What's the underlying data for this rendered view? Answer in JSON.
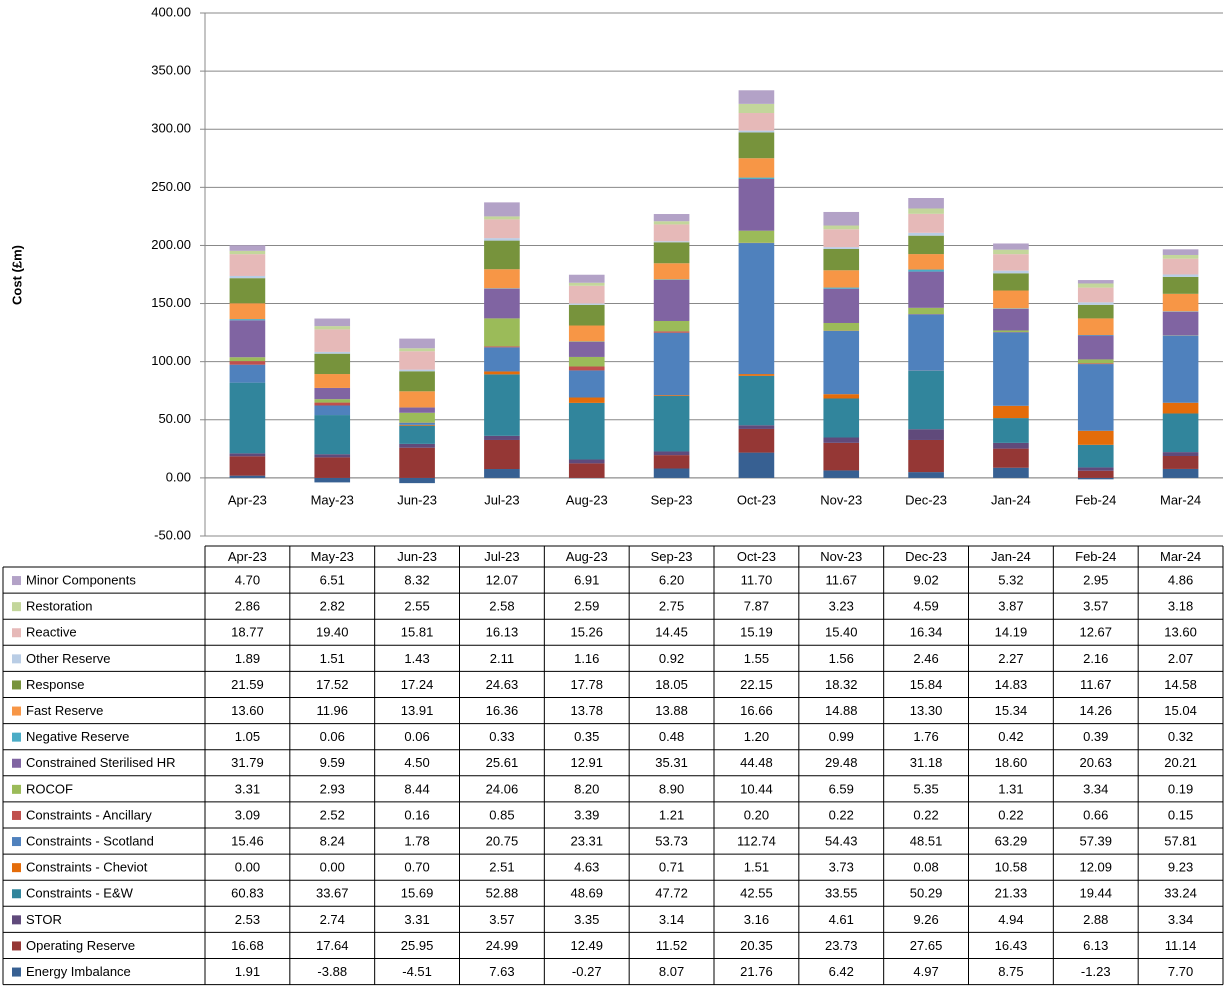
{
  "chart_data": {
    "type": "stacked_bar",
    "y_label": "Cost (£m)",
    "categories": [
      "Apr-23",
      "May-23",
      "Jun-23",
      "Jul-23",
      "Aug-23",
      "Sep-23",
      "Oct-23",
      "Nov-23",
      "Dec-23",
      "Jan-24",
      "Feb-24",
      "Mar-24"
    ],
    "ylim": [
      -50,
      400
    ],
    "yticks": [
      {
        "value": -50,
        "label": "-50.00"
      },
      {
        "value": 0,
        "label": "0.00"
      },
      {
        "value": 50,
        "label": "50.00"
      },
      {
        "value": 100,
        "label": "100.00"
      },
      {
        "value": 150,
        "label": "150.00"
      },
      {
        "value": 200,
        "label": "200.00"
      },
      {
        "value": 250,
        "label": "250.00"
      },
      {
        "value": 300,
        "label": "300.00"
      },
      {
        "value": 350,
        "label": "350.00"
      },
      {
        "value": 400,
        "label": "400.00"
      }
    ],
    "grid": true,
    "series": [
      {
        "name": "Minor Components",
        "color": "#b3a2c7",
        "values": [
          4.7,
          6.51,
          8.32,
          12.07,
          6.91,
          6.2,
          11.7,
          11.67,
          9.02,
          5.32,
          2.95,
          4.86
        ],
        "value_labels": [
          "4.70",
          "6.51",
          "8.32",
          "12.07",
          "6.91",
          "6.20",
          "11.70",
          "11.67",
          "9.02",
          "5.32",
          "2.95",
          "4.86"
        ]
      },
      {
        "name": "Restoration",
        "color": "#c3d69b",
        "values": [
          2.86,
          2.82,
          2.55,
          2.58,
          2.59,
          2.75,
          7.87,
          3.23,
          4.59,
          3.87,
          3.57,
          3.18
        ],
        "value_labels": [
          "2.86",
          "2.82",
          "2.55",
          "2.58",
          "2.59",
          "2.75",
          "7.87",
          "3.23",
          "4.59",
          "3.87",
          "3.57",
          "3.18"
        ]
      },
      {
        "name": "Reactive",
        "color": "#e6b9b8",
        "values": [
          18.77,
          19.4,
          15.81,
          16.13,
          15.26,
          14.45,
          15.19,
          15.4,
          16.34,
          14.19,
          12.67,
          13.6
        ],
        "value_labels": [
          "18.77",
          "19.40",
          "15.81",
          "16.13",
          "15.26",
          "14.45",
          "15.19",
          "15.40",
          "16.34",
          "14.19",
          "12.67",
          "13.60"
        ]
      },
      {
        "name": "Other Reserve",
        "color": "#b9cde5",
        "values": [
          1.89,
          1.51,
          1.43,
          2.11,
          1.16,
          0.92,
          1.55,
          1.56,
          2.46,
          2.27,
          2.16,
          2.07
        ],
        "value_labels": [
          "1.89",
          "1.51",
          "1.43",
          "2.11",
          "1.16",
          "0.92",
          "1.55",
          "1.56",
          "2.46",
          "2.27",
          "2.16",
          "2.07"
        ]
      },
      {
        "name": "Response",
        "color": "#77933c",
        "values": [
          21.59,
          17.52,
          17.24,
          24.63,
          17.78,
          18.05,
          22.15,
          18.32,
          15.84,
          14.83,
          11.67,
          14.58
        ],
        "value_labels": [
          "21.59",
          "17.52",
          "17.24",
          "24.63",
          "17.78",
          "18.05",
          "22.15",
          "18.32",
          "15.84",
          "14.83",
          "11.67",
          "14.58"
        ]
      },
      {
        "name": "Fast Reserve",
        "color": "#f79646",
        "values": [
          13.6,
          11.96,
          13.91,
          16.36,
          13.78,
          13.88,
          16.66,
          14.88,
          13.3,
          15.34,
          14.26,
          15.04
        ],
        "value_labels": [
          "13.60",
          "11.96",
          "13.91",
          "16.36",
          "13.78",
          "13.88",
          "16.66",
          "14.88",
          "13.30",
          "15.34",
          "14.26",
          "15.04"
        ]
      },
      {
        "name": "Negative Reserve",
        "color": "#4bacc6",
        "values": [
          1.05,
          0.06,
          0.06,
          0.33,
          0.35,
          0.48,
          1.2,
          0.99,
          1.76,
          0.42,
          0.39,
          0.32
        ],
        "value_labels": [
          "1.05",
          "0.06",
          "0.06",
          "0.33",
          "0.35",
          "0.48",
          "1.20",
          "0.99",
          "1.76",
          "0.42",
          "0.39",
          "0.32"
        ]
      },
      {
        "name": "Constrained Sterilised HR",
        "color": "#8064a2",
        "values": [
          31.79,
          9.59,
          4.5,
          25.61,
          12.91,
          35.31,
          44.48,
          29.48,
          31.18,
          18.6,
          20.63,
          20.21
        ],
        "value_labels": [
          "31.79",
          "9.59",
          "4.50",
          "25.61",
          "12.91",
          "35.31",
          "44.48",
          "29.48",
          "31.18",
          "18.60",
          "20.63",
          "20.21"
        ]
      },
      {
        "name": "ROCOF",
        "color": "#9bbb59",
        "values": [
          3.31,
          2.93,
          8.44,
          24.06,
          8.2,
          8.9,
          10.44,
          6.59,
          5.35,
          1.31,
          3.34,
          0.19
        ],
        "value_labels": [
          "3.31",
          "2.93",
          "8.44",
          "24.06",
          "8.20",
          "8.90",
          "10.44",
          "6.59",
          "5.35",
          "1.31",
          "3.34",
          "0.19"
        ]
      },
      {
        "name": "Constraints - Ancillary",
        "color": "#c0504d",
        "values": [
          3.09,
          2.52,
          0.16,
          0.85,
          3.39,
          1.21,
          0.2,
          0.22,
          0.22,
          0.22,
          0.66,
          0.15
        ],
        "value_labels": [
          "3.09",
          "2.52",
          "0.16",
          "0.85",
          "3.39",
          "1.21",
          "0.20",
          "0.22",
          "0.22",
          "0.22",
          "0.66",
          "0.15"
        ]
      },
      {
        "name": "Constraints - Scotland",
        "color": "#4f81bd",
        "values": [
          15.46,
          8.24,
          1.78,
          20.75,
          23.31,
          53.73,
          112.74,
          54.43,
          48.51,
          63.29,
          57.39,
          57.81
        ],
        "value_labels": [
          "15.46",
          "8.24",
          "1.78",
          "20.75",
          "23.31",
          "53.73",
          "112.74",
          "54.43",
          "48.51",
          "63.29",
          "57.39",
          "57.81"
        ]
      },
      {
        "name": "Constraints - Cheviot",
        "color": "#e46c0a",
        "values": [
          0,
          0,
          0.7,
          2.51,
          4.63,
          0.71,
          1.51,
          3.73,
          0.08,
          10.58,
          12.09,
          9.23
        ],
        "value_labels": [
          "0.00",
          "0.00",
          "0.70",
          "2.51",
          "4.63",
          "0.71",
          "1.51",
          "3.73",
          "0.08",
          "10.58",
          "12.09",
          "9.23"
        ]
      },
      {
        "name": "Constraints - E&W",
        "color": "#31859c",
        "values": [
          60.83,
          33.67,
          15.69,
          52.88,
          48.69,
          47.72,
          42.55,
          33.55,
          50.29,
          21.33,
          19.44,
          33.24
        ],
        "value_labels": [
          "60.83",
          "33.67",
          "15.69",
          "52.88",
          "48.69",
          "47.72",
          "42.55",
          "33.55",
          "50.29",
          "21.33",
          "19.44",
          "33.24"
        ]
      },
      {
        "name": "STOR",
        "color": "#604a7b",
        "values": [
          2.53,
          2.74,
          3.31,
          3.57,
          3.35,
          3.14,
          3.16,
          4.61,
          9.26,
          4.94,
          2.88,
          3.34
        ],
        "value_labels": [
          "2.53",
          "2.74",
          "3.31",
          "3.57",
          "3.35",
          "3.14",
          "3.16",
          "4.61",
          "9.26",
          "4.94",
          "2.88",
          "3.34"
        ]
      },
      {
        "name": "Operating Reserve",
        "color": "#953735",
        "values": [
          16.68,
          17.64,
          25.95,
          24.99,
          12.49,
          11.52,
          20.35,
          23.73,
          27.65,
          16.43,
          6.13,
          11.14
        ],
        "value_labels": [
          "16.68",
          "17.64",
          "25.95",
          "24.99",
          "12.49",
          "11.52",
          "20.35",
          "23.73",
          "27.65",
          "16.43",
          "6.13",
          "11.14"
        ]
      },
      {
        "name": "Energy Imbalance",
        "color": "#376092",
        "values": [
          1.91,
          -3.88,
          -4.51,
          7.63,
          -0.27,
          8.07,
          21.76,
          6.42,
          4.97,
          8.75,
          -1.23,
          7.7
        ],
        "value_labels": [
          "1.91",
          "-3.88",
          "-4.51",
          "7.63",
          "-0.27",
          "8.07",
          "21.76",
          "6.42",
          "4.97",
          "8.75",
          "-1.23",
          "7.70"
        ]
      }
    ]
  }
}
